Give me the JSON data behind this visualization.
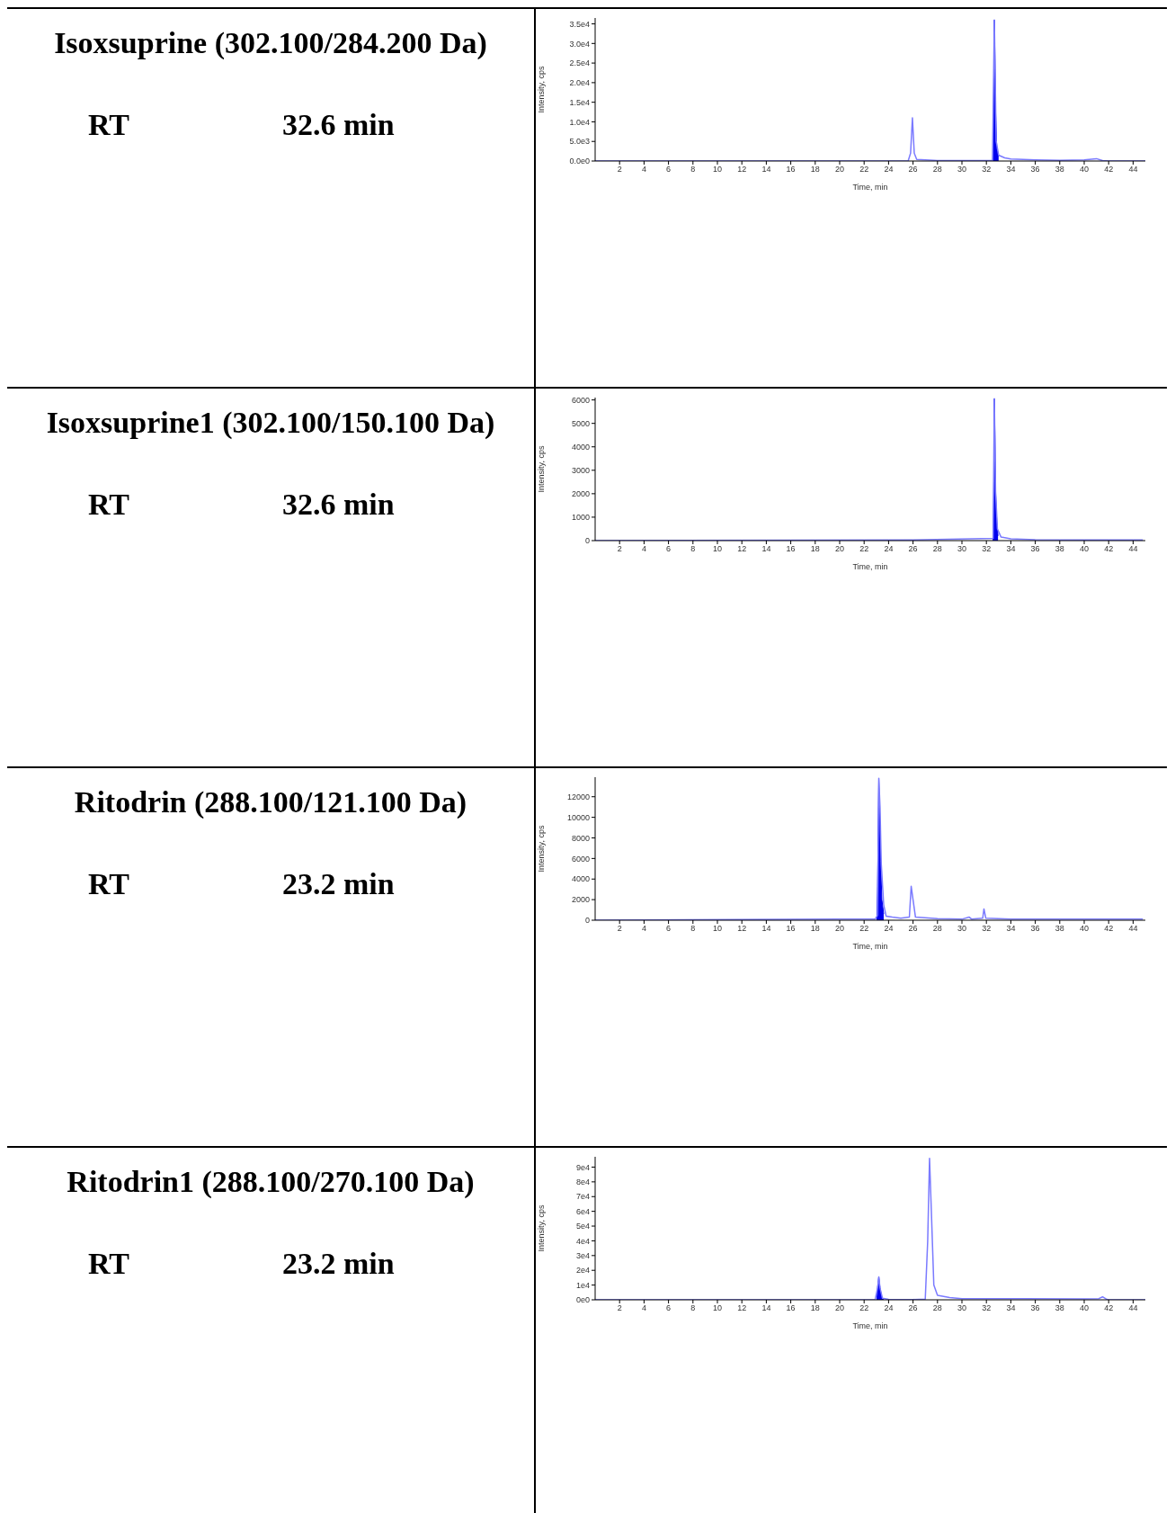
{
  "chart_data": [
    {
      "type": "line",
      "title": "Isoxsuprine (302.100/284.200 Da)",
      "annotations": [
        "RT",
        "32.6 min"
      ],
      "xlabel": "Time, min",
      "ylabel": "Intensity, cps",
      "xlim": [
        0,
        45
      ],
      "xticks": [
        2,
        4,
        6,
        8,
        10,
        12,
        14,
        16,
        18,
        20,
        22,
        24,
        26,
        28,
        30,
        32,
        34,
        36,
        38,
        40,
        42,
        44
      ],
      "ylim": [
        0,
        36500
      ],
      "yticks": [
        {
          "value": 0,
          "label": "0.0e0"
        },
        {
          "value": 5000,
          "label": "5.0e3"
        },
        {
          "value": 10000,
          "label": "1.0e4"
        },
        {
          "value": 15000,
          "label": "1.5e4"
        },
        {
          "value": 20000,
          "label": "2.0e4"
        },
        {
          "value": 25000,
          "label": "2.5e4"
        },
        {
          "value": 30000,
          "label": "3.0e4"
        },
        {
          "value": 35000,
          "label": "3.5e4"
        }
      ],
      "series": [
        {
          "type": "line",
          "color": "#7a7aff",
          "x": [
            0,
            24,
            25.6,
            25.8,
            25.95,
            26.1,
            26.3,
            27,
            28,
            30,
            32.5,
            32.65,
            32.8,
            33,
            33.5,
            34,
            36,
            38,
            40,
            41,
            41.5,
            42,
            45
          ],
          "values": [
            0,
            0,
            0,
            2000,
            11000,
            2000,
            400,
            300,
            100,
            100,
            100,
            36000,
            5000,
            1500,
            800,
            500,
            300,
            200,
            300,
            600,
            100,
            0,
            0
          ]
        },
        {
          "type": "area",
          "color": "#0000ee",
          "x": [
            32.55,
            32.6,
            32.65,
            32.7,
            32.75,
            32.85,
            33
          ],
          "values": [
            0,
            14000,
            36000,
            26000,
            13000,
            3000,
            1200
          ]
        }
      ]
    },
    {
      "type": "line",
      "title": "Isoxsuprine1 (302.100/150.100 Da)",
      "annotations": [
        "RT",
        "32.6 min"
      ],
      "xlabel": "Time, min",
      "ylabel": "Intensity, cps",
      "xlim": [
        0,
        45
      ],
      "xticks": [
        2,
        4,
        6,
        8,
        10,
        12,
        14,
        16,
        18,
        20,
        22,
        24,
        26,
        28,
        30,
        32,
        34,
        36,
        38,
        40,
        42,
        44
      ],
      "ylim": [
        0,
        6100
      ],
      "yticks": [
        0,
        1000,
        2000,
        3000,
        4000,
        5000,
        6000
      ],
      "series": [
        {
          "type": "line",
          "color": "#7a7aff",
          "x": [
            0,
            26,
            32.55,
            32.65,
            32.75,
            32.9,
            33.2,
            34,
            36,
            40,
            44.8
          ],
          "values": [
            0,
            30,
            100,
            6050,
            2100,
            500,
            150,
            80,
            40,
            30,
            30
          ]
        },
        {
          "type": "area",
          "color": "#0000ee",
          "x": [
            32.55,
            32.6,
            32.65,
            32.7,
            32.75,
            32.85,
            32.95
          ],
          "values": [
            0,
            1700,
            6050,
            4400,
            2100,
            800,
            200
          ]
        }
      ]
    },
    {
      "type": "line",
      "title": "Ritodrin (288.100/121.100 Da)",
      "annotations": [
        "RT",
        "23.2 min"
      ],
      "xlabel": "Time, min",
      "ylabel": "Intensity, cps",
      "xlim": [
        0,
        45
      ],
      "xticks": [
        2,
        4,
        6,
        8,
        10,
        12,
        14,
        16,
        18,
        20,
        22,
        24,
        26,
        28,
        30,
        32,
        34,
        36,
        38,
        40,
        42,
        44
      ],
      "ylim": [
        0,
        13900
      ],
      "yticks": [
        0,
        2000,
        4000,
        6000,
        8000,
        10000,
        12000
      ],
      "series": [
        {
          "type": "line",
          "color": "#7a7aff",
          "x": [
            0,
            20,
            22.9,
            23.1,
            23.2,
            23.3,
            23.4,
            23.6,
            23.8,
            24.3,
            25,
            25.7,
            25.85,
            26,
            26.2,
            28,
            30,
            30.6,
            30.8,
            31.7,
            31.8,
            31.95,
            34,
            36,
            38,
            40,
            42,
            44.8
          ],
          "values": [
            0,
            100,
            100,
            500,
            13800,
            11000,
            5500,
            1500,
            400,
            300,
            200,
            300,
            3300,
            2000,
            300,
            150,
            100,
            300,
            100,
            200,
            1100,
            200,
            100,
            100,
            100,
            100,
            100,
            100
          ]
        },
        {
          "type": "area",
          "color": "#0000ee",
          "x": [
            23.05,
            23.1,
            23.2,
            23.25,
            23.35,
            23.45,
            23.6
          ],
          "values": [
            0,
            3300,
            13800,
            11000,
            5700,
            2000,
            600
          ]
        }
      ]
    },
    {
      "type": "line",
      "title": "Ritodrin1 (288.100/270.100 Da)",
      "annotations": [
        "RT",
        "23.2 min"
      ],
      "xlabel": "Time, min",
      "ylabel": "Intensity, cps",
      "xlim": [
        0,
        45
      ],
      "xticks": [
        2,
        4,
        6,
        8,
        10,
        12,
        14,
        16,
        18,
        20,
        22,
        24,
        26,
        28,
        30,
        32,
        34,
        36,
        38,
        40,
        42,
        44
      ],
      "ylim": [
        0,
        97000
      ],
      "yticks": [
        {
          "value": 0,
          "label": "0e0"
        },
        {
          "value": 10000,
          "label": "1e4"
        },
        {
          "value": 20000,
          "label": "2e4"
        },
        {
          "value": 30000,
          "label": "3e4"
        },
        {
          "value": 40000,
          "label": "4e4"
        },
        {
          "value": 50000,
          "label": "5e4"
        },
        {
          "value": 60000,
          "label": "6e4"
        },
        {
          "value": 70000,
          "label": "7e4"
        },
        {
          "value": 80000,
          "label": "8e4"
        },
        {
          "value": 90000,
          "label": "9e4"
        }
      ],
      "series": [
        {
          "type": "line",
          "color": "#7a7aff",
          "x": [
            0,
            22.9,
            23.1,
            23.2,
            23.3,
            23.5,
            24,
            26,
            27,
            27.2,
            27.35,
            27.5,
            27.7,
            28,
            29,
            30,
            35,
            40,
            41.2,
            41.5,
            41.8,
            42,
            45
          ],
          "values": [
            0,
            0,
            8000,
            15500,
            8000,
            1000,
            300,
            200,
            500,
            40000,
            96000,
            60000,
            10000,
            3000,
            1500,
            800,
            700,
            600,
            800,
            2000,
            500,
            0,
            0
          ]
        },
        {
          "type": "area",
          "color": "#0000ee",
          "x": [
            23.05,
            23.1,
            23.2,
            23.3,
            23.45,
            23.6
          ],
          "values": [
            0,
            8000,
            15500,
            8000,
            1500,
            0
          ]
        }
      ]
    }
  ]
}
